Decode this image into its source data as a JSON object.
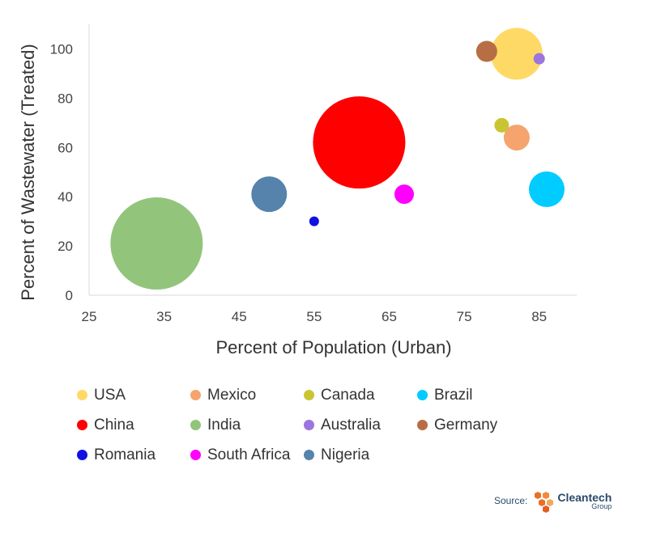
{
  "chart_data": {
    "type": "bubble",
    "xlabel": "Percent of Population (Urban)",
    "ylabel": "Percent of Wastewater (Treated)",
    "xlim": [
      25,
      90
    ],
    "ylim": [
      0,
      110
    ],
    "xticks": [
      25,
      35,
      45,
      55,
      65,
      75,
      85
    ],
    "yticks": [
      0,
      20,
      40,
      60,
      80,
      100
    ],
    "grid": false,
    "legend_position": "bottom",
    "series": [
      {
        "name": "USA",
        "x": 82,
        "y": 98,
        "size": 32,
        "color": "#FFD966"
      },
      {
        "name": "Mexico",
        "x": 82,
        "y": 64,
        "size": 16,
        "color": "#F4A46C"
      },
      {
        "name": "Canada",
        "x": 80,
        "y": 69,
        "size": 9,
        "color": "#C9C532"
      },
      {
        "name": "Brazil",
        "x": 86,
        "y": 43,
        "size": 22,
        "color": "#00CCFF"
      },
      {
        "name": "China",
        "x": 61,
        "y": 62,
        "size": 57,
        "color": "#FF0000"
      },
      {
        "name": "India",
        "x": 34,
        "y": 21,
        "size": 57,
        "color": "#92C57B"
      },
      {
        "name": "Australia",
        "x": 85,
        "y": 96,
        "size": 7,
        "color": "#9B75E0"
      },
      {
        "name": "Germany",
        "x": 78,
        "y": 99,
        "size": 13,
        "color": "#B86E44"
      },
      {
        "name": "Romania",
        "x": 55,
        "y": 30,
        "size": 6,
        "color": "#1010E0"
      },
      {
        "name": "South Africa",
        "x": 67,
        "y": 41,
        "size": 12,
        "color": "#FF00FF"
      },
      {
        "name": "Nigeria",
        "x": 49,
        "y": 41,
        "size": 22,
        "color": "#5583AB"
      }
    ]
  },
  "source": {
    "label": "Source:",
    "brand": "Cleantech",
    "brand_sub": "Group"
  }
}
